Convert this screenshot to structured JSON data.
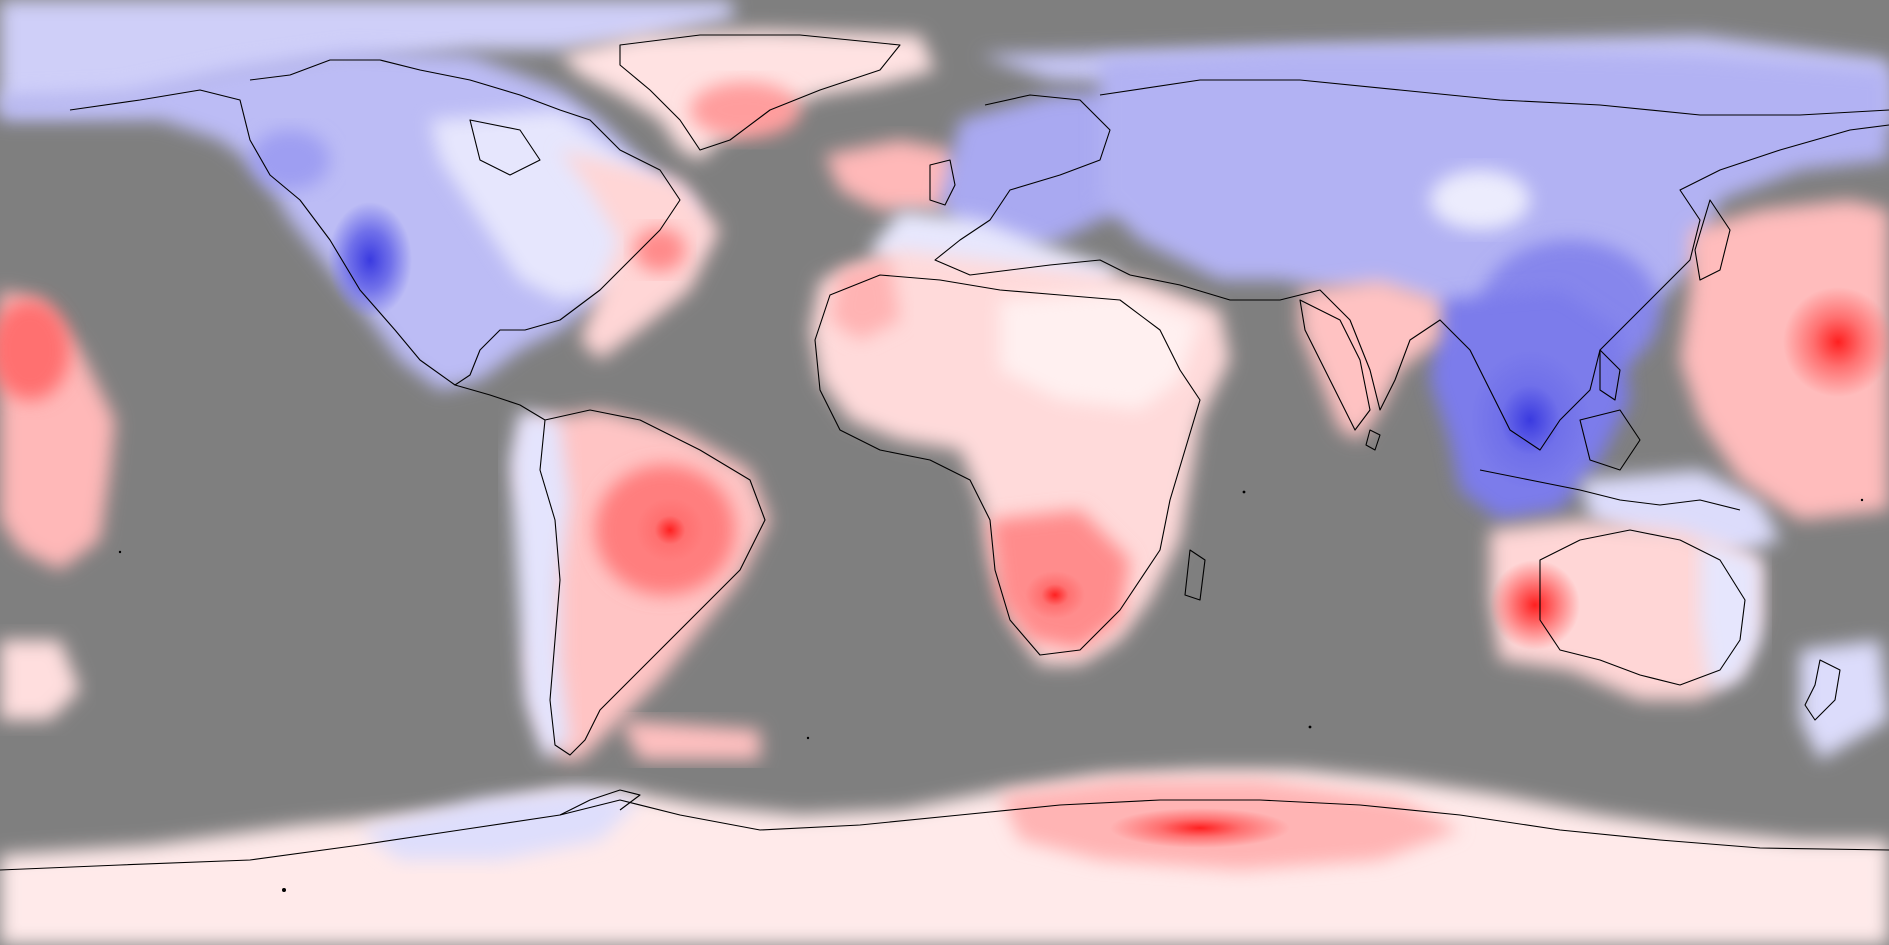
{
  "map": {
    "projection": "equirectangular",
    "no_data_color": "#7f7f7f",
    "coastline_color": "#000000",
    "palette": {
      "strong_positive": "#ff2a2a",
      "positive": "#ff8c8c",
      "weak_positive": "#ffd2d2",
      "near_zero": "#fff1f1",
      "weak_negative": "#dcdcff",
      "negative": "#a8a8f5",
      "strong_negative": "#4a4ae6"
    },
    "regions": [
      {
        "name": "north-america",
        "anomaly": "negative"
      },
      {
        "name": "greenland",
        "anomaly": "positive"
      },
      {
        "name": "europe",
        "anomaly": "negative"
      },
      {
        "name": "siberia-asia",
        "anomaly": "negative"
      },
      {
        "name": "southeast-asia",
        "anomaly": "strong_negative"
      },
      {
        "name": "india",
        "anomaly": "positive"
      },
      {
        "name": "africa",
        "anomaly": "positive"
      },
      {
        "name": "southern-africa",
        "anomaly": "strong_positive"
      },
      {
        "name": "south-america",
        "anomaly": "positive"
      },
      {
        "name": "amazon",
        "anomaly": "strong_positive"
      },
      {
        "name": "australia",
        "anomaly": "positive"
      },
      {
        "name": "western-australia",
        "anomaly": "strong_positive"
      },
      {
        "name": "west-pacific",
        "anomaly": "positive"
      },
      {
        "name": "east-pacific",
        "anomaly": "positive"
      },
      {
        "name": "antarctica",
        "anomaly": "positive"
      }
    ]
  }
}
